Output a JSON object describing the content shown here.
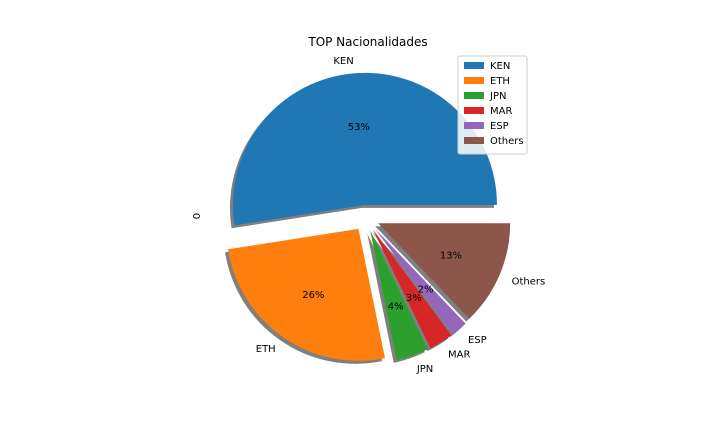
{
  "chart_data": {
    "type": "pie",
    "title": "TOP Nacionalidades",
    "ylabel": "0",
    "categories": [
      "KEN",
      "ETH",
      "JPN",
      "MAR",
      "ESP",
      "Others"
    ],
    "values": [
      53,
      26,
      4,
      3,
      2,
      13
    ],
    "percent_labels": [
      "53%",
      "26%",
      "4%",
      "3%",
      "2%",
      "13%"
    ],
    "colors": [
      "#1f77b4",
      "#ff7f0e",
      "#2ca02c",
      "#d62728",
      "#9467bd",
      "#8c564b"
    ],
    "exploded": true,
    "shadow": true,
    "legend": {
      "position": "top-right",
      "entries": [
        "KEN",
        "ETH",
        "JPN",
        "MAR",
        "ESP",
        "Others"
      ]
    }
  }
}
